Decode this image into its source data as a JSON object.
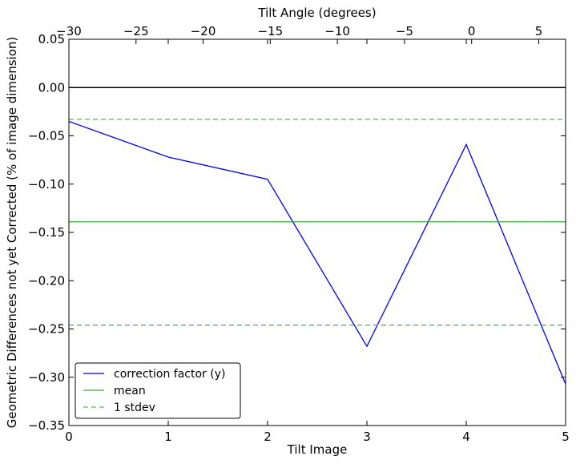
{
  "chart_data": {
    "type": "line",
    "xlabel": "Tilt Image",
    "ylabel": "Geometric Differences not yet Corrected (% of image dimension)",
    "secondary_xlabel": "Tilt Angle (degrees)",
    "xlim": [
      0,
      5
    ],
    "ylim": [
      -0.35,
      0.05
    ],
    "secondary_xlim": [
      -30,
      7
    ],
    "x_ticks": [
      0,
      1,
      2,
      3,
      4,
      5
    ],
    "x_tick_labels": [
      "0",
      "1",
      "2",
      "3",
      "4",
      "5"
    ],
    "y_ticks": [
      0.05,
      0.0,
      -0.05,
      -0.1,
      -0.15,
      -0.2,
      -0.25,
      -0.3,
      -0.35
    ],
    "y_tick_labels": [
      "0.05",
      "0.00",
      "−0.05",
      "−0.10",
      "−0.15",
      "−0.20",
      "−0.25",
      "−0.30",
      "−0.35"
    ],
    "secondary_x_ticks": [
      -30,
      -25,
      -20,
      -15,
      -10,
      -5,
      0,
      5
    ],
    "secondary_x_tick_labels": [
      "−30",
      "−25",
      "−20",
      "−15",
      "−10",
      "−5",
      "0",
      "5"
    ],
    "grid": false,
    "legend_position": "lower-left",
    "series": [
      {
        "name": "correction factor (y)",
        "color": "#0000ff",
        "style": "solid",
        "x": [
          0,
          1,
          2,
          3,
          4,
          5
        ],
        "y": [
          -0.035,
          -0.072,
          -0.095,
          -0.268,
          -0.059,
          -0.307
        ]
      },
      {
        "name": "mean",
        "color": "#3aaa3a",
        "style": "solid",
        "x": [
          0,
          5
        ],
        "y": [
          -0.139,
          -0.139
        ]
      },
      {
        "name": "1 stdev",
        "color": "#55bb55",
        "style": "dashed",
        "x": [
          0,
          5
        ],
        "y": [
          -0.033,
          -0.033
        ]
      },
      {
        "name": "1 stdev",
        "color": "#55bb55",
        "style": "dashed",
        "x": [
          0,
          5
        ],
        "y": [
          -0.246,
          -0.246
        ]
      }
    ],
    "reference_line": {
      "y": 0.0,
      "color": "#000000"
    },
    "legend": [
      {
        "label": "correction factor (y)",
        "color": "#0000ff",
        "style": "solid"
      },
      {
        "label": "mean",
        "color": "#3aaa3a",
        "style": "solid"
      },
      {
        "label": "1 stdev",
        "color": "#55bb55",
        "style": "dashed"
      }
    ]
  }
}
